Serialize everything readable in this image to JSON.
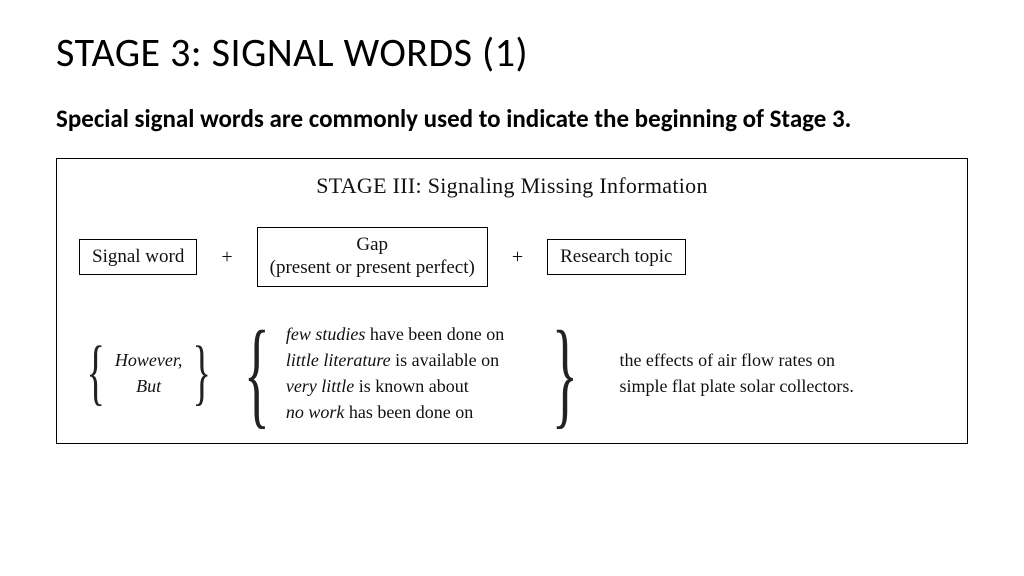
{
  "title": "STAGE 3: SIGNAL WORDS (1)",
  "subtitle": "Special signal words are commonly used to indicate the beginning of Stage 3.",
  "panel": {
    "heading": "STAGE III: Signaling Missing Information",
    "formula": {
      "signal": "Signal word",
      "plus": "+",
      "gap_line1": "Gap",
      "gap_line2": "(present or present perfect)",
      "topic": "Research topic"
    },
    "examples": {
      "signal": [
        "However,",
        "But"
      ],
      "gap": [
        {
          "i": "few studies",
          "rest": " have been done on"
        },
        {
          "i": "little literature",
          "rest": " is available on"
        },
        {
          "i": "very little",
          "rest": " is known about"
        },
        {
          "i": "no work",
          "rest": " has been done on"
        }
      ],
      "topic": [
        "the effects of air flow rates on",
        "simple flat plate solar collectors."
      ]
    }
  },
  "style": {
    "bg": "#ffffff",
    "text": "#000000",
    "border": "#000000",
    "title_fontsize": 40,
    "subtitle_fontsize": 25,
    "panel_fontsize": 19,
    "panel_font": "Times New Roman"
  }
}
